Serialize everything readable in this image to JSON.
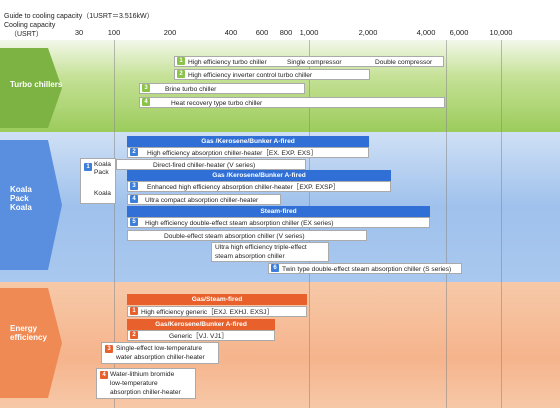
{
  "header": {
    "guide": "Guide to cooling capacity（1USRT＝3.516kW）",
    "cooling_capacity": "Cooling capacity",
    "unit": "（USRT）",
    "ticks": [
      "30",
      "100",
      "200",
      "400",
      "600",
      "800",
      "1,000",
      "2,000",
      "4,000",
      "6,000",
      "10,000"
    ]
  },
  "categories": {
    "turbo": "Turbo chillers",
    "koala": "Koala Pack Koala",
    "energy": "Energy efficiency"
  },
  "colors": {
    "turbo_num": "#8bc34a",
    "koala_num": "#3d7fd9",
    "koala_header": "#2f6fd6",
    "energy_num": "#e8612c",
    "energy_header": "#e8612c",
    "turbo_band": "#a8d06a",
    "koala_band": "#8fb6ea",
    "energy_band": "#f5b48c"
  },
  "turbo": {
    "r1_num": "1",
    "r1_label": "High efficiency turbo chiller",
    "r1_single": "Single compressor",
    "r1_double": "Double compressor",
    "r2_num": "2",
    "r2_label": "High efficiency inverter control turbo chiller",
    "r3_num": "3",
    "r3_label": "Brine turbo chiller",
    "r4_num": "4",
    "r4_label": "Heat recovery type turbo chiller"
  },
  "koala": {
    "gas_header": "Gas /Kerosene/Bunker A-fired",
    "r2_num": "2",
    "r2_label": "High efficiency absorption chiller-heater［EX. EXP. EXS］",
    "side_num": "1",
    "side_pack": "Koala Pack",
    "side_koala": "Koala",
    "direct": "Direct-fired chiller-heater (V series)",
    "gas_header2": "Gas /Kerosene/Bunker A-fired",
    "r3_num": "3",
    "r3_label": "Enhanced high efficiency absorption chiller-heater［EXP. EXSP］",
    "r4_num": "4",
    "r4_label": "Ultra compact absorption chiller-heater",
    "steam_header": "Steam-fired",
    "r5_num": "5",
    "r5_label": "High efficiency double-effect steam absorption chiller (EX series)",
    "double_effect": "Double-effect steam absorption chiller (V series)",
    "triple_1": "Ultra high efficiency triple-effect",
    "triple_2": "steam absorption chiller",
    "r6_num": "6",
    "r6_label": "Twin type double-effect steam absorption chiller (S series)"
  },
  "energy": {
    "gas_steam_header": "Gas/Steam-fired",
    "r1_num": "1",
    "r1_label": "High efficiency generic［EXJ. EXHJ. EXSJ］",
    "gas_header": "Gas/Kerosene/Bunker A-fired",
    "r2_num": "2",
    "r2_label": "Generic［VJ. VJ1］",
    "r3_num": "3",
    "r3_label_1": "Single-effect low-temperature",
    "r3_label_2": "water absorption chiller-heater",
    "r4_num": "4",
    "r4_label_1": "Water-lithium bromide",
    "r4_label_2": "low-temperature",
    "r4_label_3": "absorption chiller-heater"
  }
}
